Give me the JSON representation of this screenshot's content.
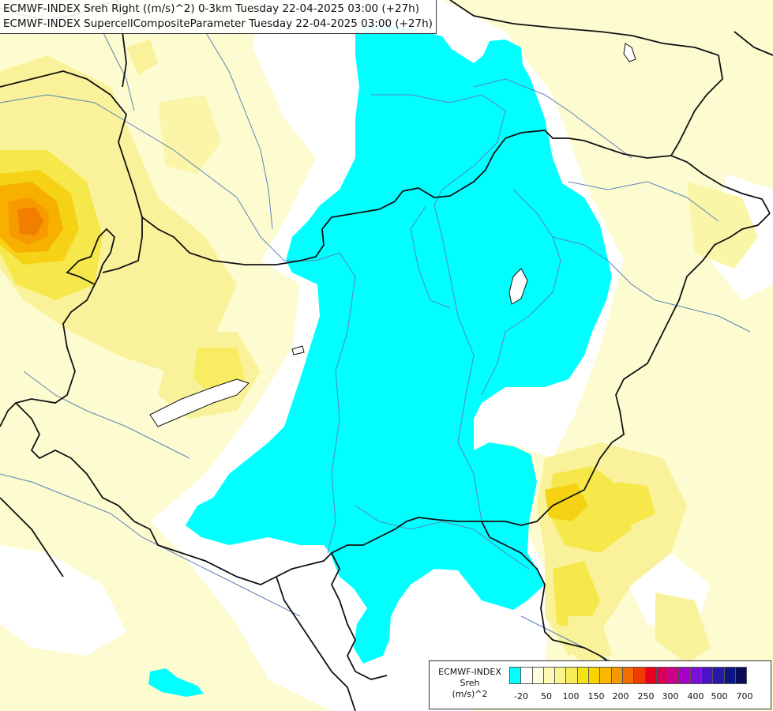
{
  "title": {
    "line1": "ECMWF-INDEX Sreh Right ((m/s)^2) 0-3km Tuesday 22-04-2025 03:00 (+27h)",
    "line2": "ECMWF-INDEX SupercellCompositeParameter Tuesday 22-04-2025 03:00 (+27h)"
  },
  "legend": {
    "source": "ECMWF-INDEX",
    "variable": "Sreh",
    "unit": "(m/s)^2",
    "colors": [
      "#00ffff",
      "#ffffff",
      "#fffde0",
      "#fdf8b4",
      "#fbf38c",
      "#f8ec5a",
      "#f5e414",
      "#fbd400",
      "#f9b800",
      "#f79600",
      "#f26e00",
      "#ef3d00",
      "#e8001c",
      "#d60058",
      "#c8008c",
      "#a800c8",
      "#7c10d8",
      "#4a14c4",
      "#261aa6",
      "#0c1484",
      "#0a0a5a"
    ],
    "tick_labels": [
      "-20",
      "50",
      "100",
      "150",
      "200",
      "250",
      "300",
      "400",
      "500",
      "700"
    ]
  }
}
